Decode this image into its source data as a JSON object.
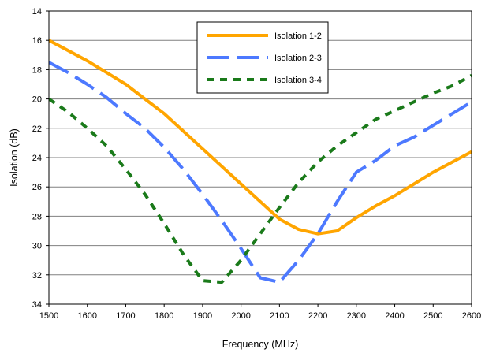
{
  "chart_data": {
    "type": "line",
    "title": "",
    "xlabel": "Frequency (MHz)",
    "ylabel": "Isolation (dB)",
    "xlim": [
      1500,
      2600
    ],
    "ylim": [
      14,
      34
    ],
    "y_axis_inverted": true,
    "x_ticks": [
      1500,
      1600,
      1700,
      1800,
      1900,
      2000,
      2100,
      2200,
      2300,
      2400,
      2500,
      2600
    ],
    "y_ticks": [
      14,
      16,
      18,
      20,
      22,
      24,
      26,
      28,
      30,
      32,
      34
    ],
    "grid": "horizontal",
    "legend_position": "top-center",
    "series": [
      {
        "name": "Isolation 1-2",
        "color": "#ffa500",
        "style": "solid",
        "x": [
          1500,
          1550,
          1600,
          1650,
          1700,
          1750,
          1800,
          1850,
          1900,
          1950,
          2000,
          2050,
          2100,
          2150,
          2200,
          2250,
          2300,
          2350,
          2400,
          2450,
          2500,
          2550,
          2600
        ],
        "y": [
          16.0,
          16.7,
          17.4,
          18.2,
          19.0,
          20.0,
          21.0,
          22.2,
          23.4,
          24.6,
          25.8,
          27.0,
          28.2,
          28.9,
          29.2,
          29.0,
          28.1,
          27.3,
          26.6,
          25.8,
          25.0,
          24.3,
          23.6
        ]
      },
      {
        "name": "Isolation 2-3",
        "color": "#4d79ff",
        "style": "long-dash",
        "x": [
          1500,
          1550,
          1600,
          1650,
          1700,
          1750,
          1800,
          1850,
          1900,
          1950,
          2000,
          2050,
          2100,
          2150,
          2200,
          2250,
          2300,
          2350,
          2400,
          2450,
          2500,
          2550,
          2600
        ],
        "y": [
          17.5,
          18.2,
          19.0,
          19.9,
          21.0,
          22.0,
          23.3,
          24.8,
          26.5,
          28.3,
          30.2,
          32.2,
          32.5,
          31.0,
          29.2,
          27.0,
          25.0,
          24.2,
          23.2,
          22.6,
          21.8,
          21.0,
          20.2
        ]
      },
      {
        "name": "Isolation 3-4",
        "color": "#1a7a1a",
        "style": "short-dash",
        "x": [
          1500,
          1550,
          1600,
          1650,
          1700,
          1750,
          1800,
          1850,
          1900,
          1950,
          2000,
          2050,
          2100,
          2150,
          2200,
          2250,
          2300,
          2350,
          2400,
          2450,
          2500,
          2550,
          2600
        ],
        "y": [
          20.0,
          20.9,
          22.0,
          23.2,
          24.8,
          26.5,
          28.5,
          30.6,
          32.4,
          32.5,
          31.0,
          29.2,
          27.4,
          25.7,
          24.3,
          23.2,
          22.3,
          21.4,
          20.8,
          20.2,
          19.6,
          19.1,
          18.4
        ]
      }
    ]
  }
}
